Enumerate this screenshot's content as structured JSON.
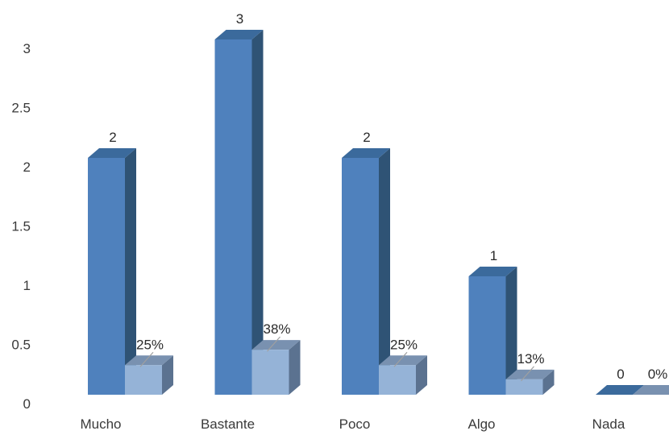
{
  "chart_data": {
    "type": "bar",
    "style": "3d-clustered-column",
    "categories": [
      "Mucho",
      "Bastante",
      "Poco",
      "Algo",
      "Nada"
    ],
    "series": [
      {
        "values": [
          2,
          3,
          2,
          1,
          0
        ],
        "labels": [
          "2",
          "3",
          "2",
          "1",
          "0"
        ],
        "color": "#4f81bd",
        "side_color": "#2f5375",
        "top_color": "#3b6a9c"
      },
      {
        "values": [
          0.25,
          0.38,
          0.25,
          0.13,
          0
        ],
        "labels": [
          "25%",
          "38%",
          "25%",
          "13%",
          "0%"
        ],
        "color": "#95b3d7",
        "side_color": "#5b7290",
        "top_color": "#7991b0"
      }
    ],
    "y_ticks": [
      "0",
      "0.5",
      "1",
      "1.5",
      "2",
      "2.5",
      "3"
    ],
    "ylim": [
      0,
      3
    ],
    "grid": false,
    "legend": "none"
  }
}
